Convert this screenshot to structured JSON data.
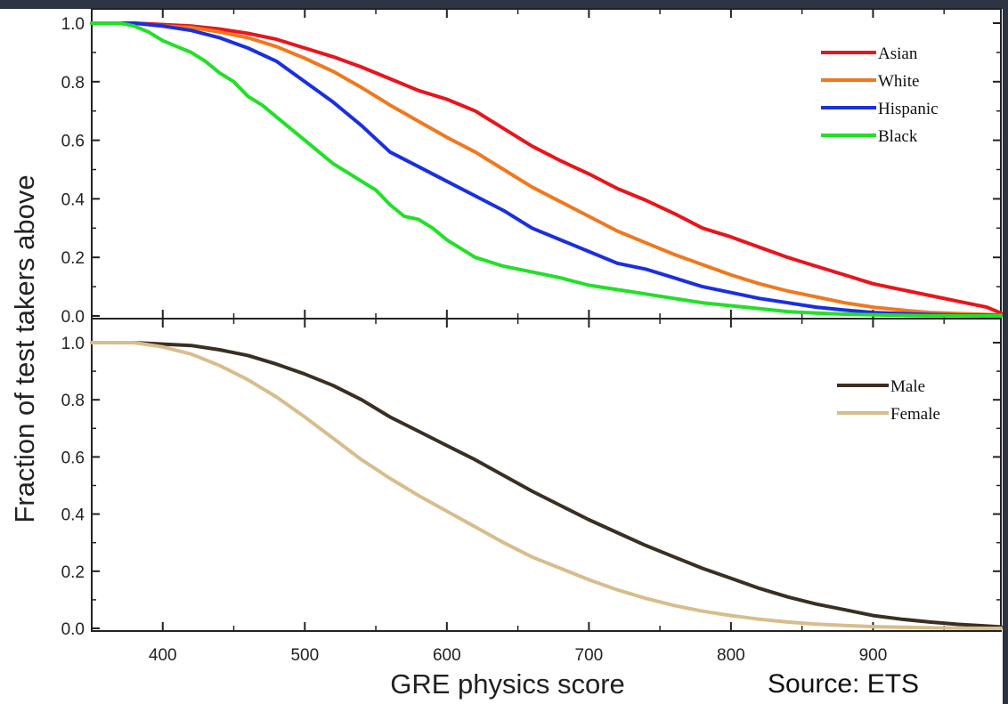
{
  "source_note": "Source: ETS",
  "x_axis": {
    "label": "GRE physics score",
    "range": [
      350,
      990
    ],
    "ticks": [
      400,
      500,
      600,
      700,
      800,
      900
    ],
    "minor_ticks": [
      450,
      550,
      650,
      750,
      850,
      950
    ]
  },
  "y_axis": {
    "label": "Fraction of test takers above",
    "range": [
      0,
      1.0
    ],
    "ticks": [
      0,
      0.2,
      0.4,
      0.6,
      0.8,
      1.0
    ],
    "tick_labels": [
      "0.0",
      "0.2",
      "0.4",
      "0.6",
      "0.8",
      "1.0"
    ]
  },
  "chart_data": [
    {
      "type": "line",
      "panel": "top",
      "xlabel": "GRE physics score",
      "ylabel": "Fraction of test takers above",
      "xlim": [
        350,
        990
      ],
      "ylim": [
        0,
        1.0
      ],
      "grid": false,
      "legend_position": "top-right",
      "series": [
        {
          "name": "Asian",
          "color": "#e8151b",
          "x": [
            350,
            380,
            400,
            420,
            440,
            460,
            480,
            500,
            520,
            540,
            560,
            580,
            600,
            620,
            640,
            660,
            680,
            700,
            720,
            740,
            760,
            780,
            800,
            820,
            840,
            860,
            880,
            900,
            920,
            940,
            960,
            980,
            990
          ],
          "y": [
            1.0,
            1.0,
            0.995,
            0.99,
            0.98,
            0.965,
            0.945,
            0.915,
            0.885,
            0.85,
            0.81,
            0.77,
            0.74,
            0.7,
            0.64,
            0.58,
            0.53,
            0.485,
            0.435,
            0.395,
            0.35,
            0.3,
            0.27,
            0.235,
            0.2,
            0.17,
            0.14,
            0.11,
            0.09,
            0.07,
            0.05,
            0.03,
            0.01
          ]
        },
        {
          "name": "White",
          "color": "#f0781e",
          "x": [
            350,
            380,
            400,
            420,
            440,
            460,
            480,
            500,
            520,
            540,
            560,
            580,
            600,
            620,
            640,
            660,
            680,
            700,
            720,
            740,
            760,
            780,
            800,
            820,
            840,
            860,
            880,
            900,
            920,
            940,
            960,
            980,
            990
          ],
          "y": [
            1.0,
            1.0,
            0.99,
            0.985,
            0.97,
            0.95,
            0.92,
            0.88,
            0.835,
            0.78,
            0.72,
            0.665,
            0.61,
            0.56,
            0.5,
            0.44,
            0.39,
            0.34,
            0.29,
            0.25,
            0.21,
            0.175,
            0.14,
            0.11,
            0.085,
            0.065,
            0.045,
            0.03,
            0.02,
            0.012,
            0.008,
            0.005,
            0.003
          ]
        },
        {
          "name": "Hispanic",
          "color": "#1a2fe0",
          "x": [
            350,
            380,
            400,
            420,
            440,
            460,
            480,
            500,
            520,
            540,
            560,
            580,
            600,
            620,
            640,
            660,
            680,
            700,
            720,
            740,
            760,
            780,
            800,
            820,
            840,
            860,
            880,
            900,
            920,
            940,
            960,
            980,
            990
          ],
          "y": [
            1.0,
            1.0,
            0.99,
            0.975,
            0.95,
            0.915,
            0.87,
            0.8,
            0.73,
            0.65,
            0.56,
            0.51,
            0.46,
            0.41,
            0.36,
            0.3,
            0.26,
            0.22,
            0.18,
            0.16,
            0.13,
            0.1,
            0.08,
            0.06,
            0.045,
            0.03,
            0.02,
            0.012,
            0.008,
            0.005,
            0.003,
            0.002,
            0.001
          ]
        },
        {
          "name": "Black",
          "color": "#22e028",
          "x": [
            350,
            370,
            380,
            390,
            400,
            410,
            420,
            430,
            440,
            450,
            460,
            470,
            480,
            490,
            500,
            510,
            520,
            530,
            540,
            550,
            560,
            570,
            580,
            590,
            600,
            620,
            640,
            660,
            680,
            700,
            720,
            740,
            760,
            780,
            800,
            820,
            840,
            860,
            880,
            900,
            920,
            940,
            960,
            980,
            990
          ],
          "y": [
            1.0,
            1.0,
            0.99,
            0.97,
            0.94,
            0.92,
            0.9,
            0.87,
            0.83,
            0.8,
            0.75,
            0.72,
            0.68,
            0.64,
            0.6,
            0.56,
            0.52,
            0.49,
            0.46,
            0.43,
            0.38,
            0.34,
            0.33,
            0.3,
            0.26,
            0.2,
            0.17,
            0.15,
            0.13,
            0.105,
            0.09,
            0.075,
            0.06,
            0.045,
            0.035,
            0.025,
            0.015,
            0.01,
            0.006,
            0.004,
            0.002,
            0.001,
            0.001,
            0.0,
            0.0
          ]
        }
      ]
    },
    {
      "type": "line",
      "panel": "bottom",
      "xlabel": "GRE physics score",
      "ylabel": "Fraction of test takers above",
      "xlim": [
        350,
        990
      ],
      "ylim": [
        0,
        1.0
      ],
      "grid": false,
      "legend_position": "top-right",
      "series": [
        {
          "name": "Male",
          "color": "#3a2f22",
          "x": [
            350,
            380,
            400,
            420,
            440,
            460,
            480,
            500,
            520,
            540,
            560,
            580,
            600,
            620,
            640,
            660,
            680,
            700,
            720,
            740,
            760,
            780,
            800,
            820,
            840,
            860,
            880,
            900,
            920,
            940,
            960,
            980,
            990
          ],
          "y": [
            1.0,
            1.0,
            0.995,
            0.99,
            0.975,
            0.955,
            0.925,
            0.89,
            0.85,
            0.8,
            0.74,
            0.69,
            0.64,
            0.59,
            0.535,
            0.48,
            0.43,
            0.38,
            0.335,
            0.29,
            0.25,
            0.21,
            0.175,
            0.14,
            0.11,
            0.085,
            0.065,
            0.045,
            0.032,
            0.022,
            0.014,
            0.008,
            0.005
          ]
        },
        {
          "name": "Female",
          "color": "#d8bd8c",
          "x": [
            350,
            380,
            400,
            420,
            440,
            460,
            480,
            500,
            520,
            540,
            560,
            580,
            600,
            620,
            640,
            660,
            680,
            700,
            720,
            740,
            760,
            780,
            800,
            820,
            840,
            860,
            880,
            900,
            920,
            940,
            960,
            980,
            990
          ],
          "y": [
            1.0,
            1.0,
            0.985,
            0.96,
            0.92,
            0.87,
            0.81,
            0.74,
            0.665,
            0.59,
            0.525,
            0.465,
            0.41,
            0.355,
            0.3,
            0.25,
            0.21,
            0.17,
            0.135,
            0.105,
            0.08,
            0.06,
            0.045,
            0.032,
            0.022,
            0.015,
            0.01,
            0.006,
            0.004,
            0.002,
            0.001,
            0.0,
            0.0
          ]
        }
      ]
    }
  ]
}
